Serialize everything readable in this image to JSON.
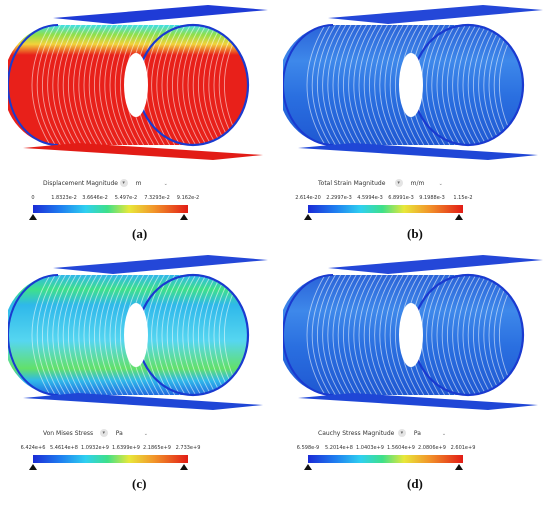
{
  "panels": [
    {
      "caption": "(a)",
      "legend_title": "Displacement Magnitude",
      "unit": "m",
      "ticks": [
        "0",
        "1.8323e-2",
        "3.6646e-2",
        "5.497e-2",
        "7.3293e-2",
        "9.162e-2"
      ],
      "colormap": "rainbow",
      "dominant_color": "#e8201a"
    },
    {
      "caption": "(b)",
      "legend_title": "Total Strain Magnitude",
      "unit": "m/m",
      "ticks": [
        "2.614e-20",
        "2.2997e-3",
        "4.5994e-3",
        "6.8991e-3",
        "9.1988e-3",
        "1.15e-2"
      ],
      "colormap": "rainbow",
      "dominant_color": "#2a63d8"
    },
    {
      "caption": "(c)",
      "legend_title": "Von Mises Stress",
      "unit": "Pa",
      "ticks": [
        "6.424e+6",
        "5.4614e+8",
        "1.0932e+9",
        "1.6399e+9",
        "2.1865e+9",
        "2.733e+9"
      ],
      "colormap": "rainbow",
      "dominant_color": "#2fb8ea"
    },
    {
      "caption": "(d)",
      "legend_title": "Cauchy Stress Magnitude",
      "unit": "Pa",
      "ticks": [
        "6.598e-9",
        "5.2014e+8",
        "1.0403e+9",
        "1.5604e+9",
        "2.0806e+9",
        "2.601e+9"
      ],
      "colormap": "rainbow",
      "dominant_color": "#2a63d8"
    }
  ]
}
